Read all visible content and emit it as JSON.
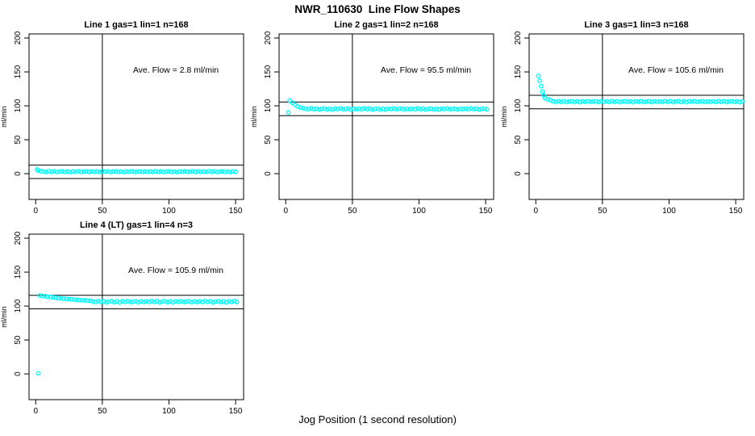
{
  "figure": {
    "title": "NWR_110630  Line Flow Shapes",
    "xlabel": "Jog Position (1 second resolution)",
    "point_color": "#00FFFF",
    "axis_color": "#000000"
  },
  "chart_data": [
    {
      "type": "scatter",
      "title": "Line 1 gas=1 lin=1 n=168",
      "ylabel": "ml/min",
      "annotation": "Ave. Flow =  2.8  ml/min",
      "ave_flow_ml_min": 2.8,
      "xlim": [
        -5,
        156
      ],
      "ylim": [
        -38,
        206
      ],
      "xticks": [
        0,
        50,
        100,
        150
      ],
      "yticks": [
        0,
        50,
        100,
        150,
        200
      ],
      "vline_x": 50,
      "hlines_y": [
        12.8,
        -7.2
      ],
      "band": {
        "x_start": 2,
        "x_step": 2,
        "y": [
          4.4,
          3.4,
          3.2,
          2.5,
          3.6,
          2.7,
          3.4,
          2.3,
          3.0,
          3.4,
          2.5,
          3.1,
          2.2,
          3.3,
          2.8,
          3.5,
          2.6,
          2.9,
          3.4,
          2.4,
          3.2,
          2.7,
          3.2,
          2.5,
          3.6,
          2.7,
          3.4,
          2.3,
          3.0,
          3.4,
          2.5,
          3.1,
          2.2,
          3.3,
          2.8,
          3.5,
          2.6,
          2.9,
          3.4,
          2.4,
          3.2,
          2.7,
          3.2,
          2.5,
          3.6,
          2.7,
          3.4,
          2.3,
          3.0,
          3.4,
          2.5,
          3.1,
          2.2,
          3.3,
          2.8,
          3.5,
          2.6,
          2.9,
          3.4,
          2.4,
          3.2,
          2.7,
          3.2,
          2.5,
          3.6,
          2.7,
          3.4,
          2.3,
          3.0,
          3.4,
          2.5,
          3.1,
          2.2,
          3.3,
          2.8
        ]
      },
      "extra_points": [
        [
          1,
          6.2
        ]
      ]
    },
    {
      "type": "scatter",
      "title": "Line 2 gas=1 lin=2 n=168",
      "ylabel": "ml/min",
      "annotation": "Ave. Flow =  95.5  ml/min",
      "ave_flow_ml_min": 95.5,
      "xlim": [
        -5,
        156
      ],
      "ylim": [
        -38,
        206
      ],
      "xticks": [
        0,
        50,
        100,
        150
      ],
      "yticks": [
        0,
        50,
        100,
        150,
        200
      ],
      "vline_x": 50,
      "hlines_y": [
        105.5,
        85.5
      ],
      "band": {
        "x_start": 3,
        "x_step": 2,
        "y": [
          107.5,
          104.5,
          101.5,
          99.0,
          97.5,
          96.5,
          95.6,
          94.9,
          96.1,
          95.1,
          95.8,
          94.6,
          95.4,
          95.9,
          94.8,
          95.5,
          94.5,
          95.7,
          95.2,
          96.0,
          95.0,
          95.3,
          95.8,
          94.7,
          95.6,
          95.1,
          95.6,
          94.9,
          96.1,
          95.1,
          95.8,
          94.6,
          95.4,
          95.9,
          94.8,
          95.5,
          94.5,
          95.7,
          95.2,
          96.0,
          95.0,
          95.3,
          95.8,
          94.7,
          95.6,
          95.1,
          95.6,
          94.9,
          96.1,
          95.1,
          95.8,
          94.6,
          95.4,
          95.9,
          94.8,
          95.5,
          94.5,
          95.7,
          95.2,
          96.0,
          95.0,
          95.3,
          95.8,
          94.7,
          95.6,
          95.1,
          95.6,
          94.9,
          96.1,
          95.1,
          95.8,
          94.6,
          95.4,
          95.9,
          94.8
        ]
      },
      "extra_points": [
        [
          2,
          90.0
        ]
      ]
    },
    {
      "type": "scatter",
      "title": "Line 3 gas=1 lin=3 n=168",
      "ylabel": "ml/min",
      "annotation": "Ave. Flow =  105.6  ml/min",
      "ave_flow_ml_min": 105.6,
      "xlim": [
        -5,
        156
      ],
      "ylim": [
        -38,
        206
      ],
      "xticks": [
        0,
        50,
        100,
        150
      ],
      "yticks": [
        0,
        50,
        100,
        150,
        200
      ],
      "vline_x": 50,
      "hlines_y": [
        115.6,
        95.6
      ],
      "band": {
        "x_start": 7,
        "x_step": 2,
        "y": [
          111.5,
          109.5,
          108.3,
          106.5,
          105.8,
          106.9,
          106.0,
          106.7,
          105.6,
          106.3,
          106.7,
          105.8,
          106.4,
          105.5,
          106.6,
          106.1,
          106.8,
          105.9,
          106.2,
          106.7,
          105.7,
          106.5,
          106.0,
          106.5,
          105.8,
          106.9,
          106.0,
          106.7,
          105.6,
          106.3,
          106.7,
          105.8,
          106.4,
          105.5,
          106.6,
          106.1,
          106.8,
          105.9,
          106.2,
          106.7,
          105.7,
          106.5,
          106.0,
          106.5,
          105.8,
          106.9,
          106.0,
          106.7,
          105.6,
          106.3,
          106.7,
          105.8,
          106.4,
          105.5,
          106.6,
          106.1,
          106.8,
          105.9,
          106.2,
          106.7,
          105.7,
          106.5,
          106.0,
          106.5,
          105.8,
          106.9,
          106.0,
          106.7,
          105.6,
          106.3,
          106.7,
          105.8,
          106.4,
          105.5,
          106.6
        ]
      },
      "extra_points": [
        [
          2,
          144
        ],
        [
          3,
          137
        ],
        [
          4,
          129
        ],
        [
          5,
          121
        ],
        [
          6,
          115
        ]
      ]
    },
    {
      "type": "scatter",
      "title": "Line 4 (LT) gas=1 lin=4 n=3",
      "ylabel": "ml/min",
      "annotation": "Ave. Flow =  105.9  ml/min",
      "ave_flow_ml_min": 105.9,
      "xlim": [
        -5,
        156
      ],
      "ylim": [
        -38,
        206
      ],
      "xticks": [
        0,
        50,
        100,
        150
      ],
      "yticks": [
        0,
        50,
        100,
        150,
        200
      ],
      "vline_x": 50,
      "hlines_y": [
        115.9,
        95.9
      ],
      "band": {
        "x_start": 3,
        "x_step": 2,
        "y": [
          115.5,
          114.8,
          114.5,
          113.8,
          113.5,
          112.8,
          112.4,
          111.8,
          111.4,
          110.9,
          110.5,
          110.2,
          109.8,
          109.4,
          109.1,
          108.8,
          108.5,
          108.3,
          108.0,
          107.8,
          106.8,
          105.9,
          107.4,
          106.1,
          107.1,
          105.5,
          106.5,
          107.2,
          105.8,
          106.7,
          105.4,
          106.9,
          106.3,
          107.3,
          106.0,
          106.4,
          107.1,
          105.6,
          106.8,
          106.1,
          106.8,
          105.9,
          107.4,
          106.1,
          107.1,
          105.5,
          106.5,
          107.2,
          105.8,
          106.7,
          105.4,
          106.9,
          106.3,
          107.3,
          106.0,
          106.4,
          107.1,
          105.6,
          106.8,
          106.1,
          106.8,
          105.9,
          107.4,
          106.1,
          107.1,
          105.5,
          106.5,
          107.2,
          105.8,
          106.7,
          105.4,
          106.9,
          106.3,
          107.3,
          106.0
        ]
      },
      "extra_points": [
        [
          2,
          1.0
        ]
      ]
    }
  ]
}
